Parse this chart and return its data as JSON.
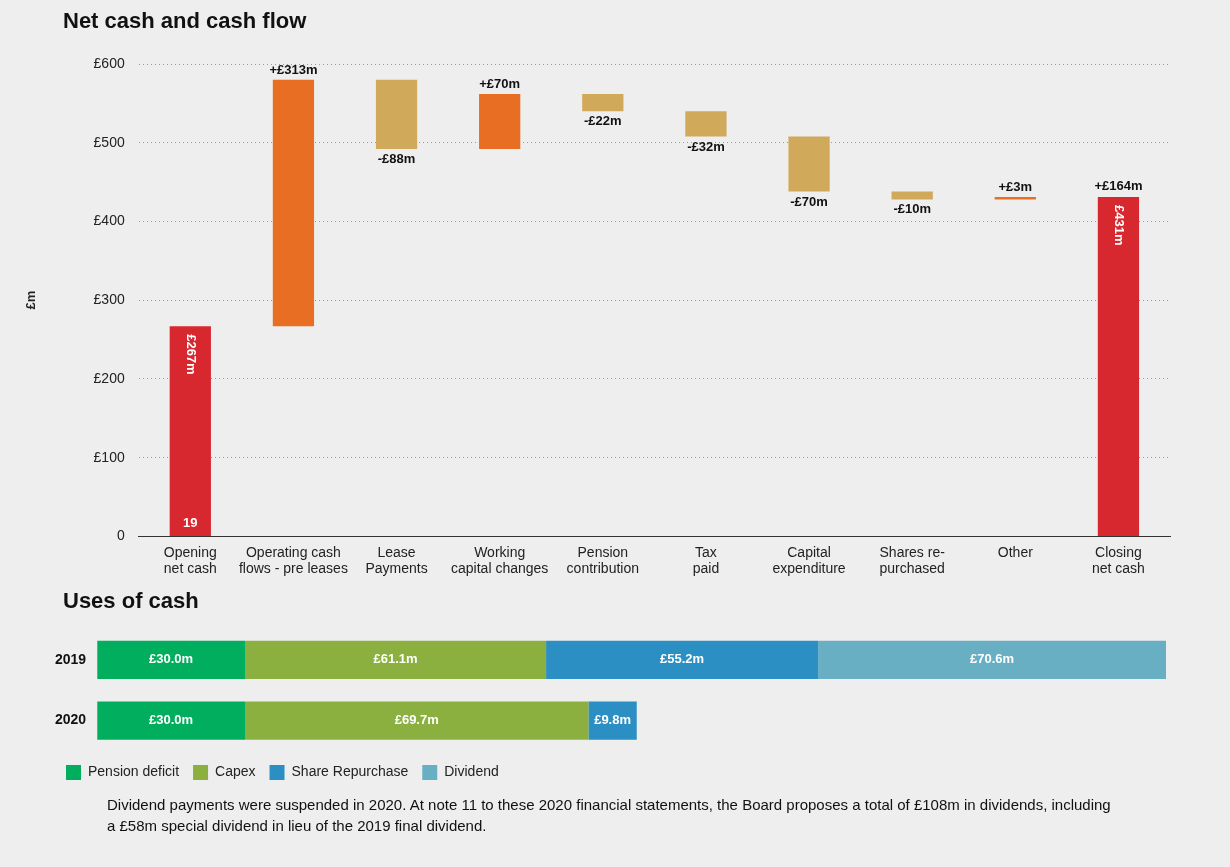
{
  "chart_data": [
    {
      "type": "bar",
      "title": "Net cash and cash flow",
      "ylabel": "£m",
      "categories": [
        "Opening net cash",
        "Operating cash flows - pre leases",
        "Lease Payments",
        "Working capital changes",
        "Pension contribution",
        "Tax paid",
        "Capital expenditure",
        "Shares re-purchased",
        "Other",
        "Closing net cash"
      ],
      "values": [
        267,
        313,
        -88,
        70,
        -22,
        -32,
        -70,
        -10,
        3,
        431
      ],
      "base": [
        0,
        267,
        580,
        492,
        562,
        540,
        508,
        438,
        428,
        0
      ],
      "colors": [
        "#d7282f",
        "#e86e23",
        "#d1a95a",
        "#e86e23",
        "#d1a95a",
        "#d1a95a",
        "#d1a95a",
        "#d1a95a",
        "#e86e23",
        "#d7282f"
      ],
      "value_labels": [
        "£267m",
        "+£313m",
        "-£88m",
        "+£70m",
        "-£22m",
        "-£32m",
        "-£70m",
        "-£10m",
        "+£3m",
        "£431m"
      ],
      "annotations": [
        {
          "text": "19",
          "x": "Opening net cash",
          "y": 0
        },
        {
          "text": "+£164m",
          "x": "Closing net cash",
          "y": 431
        }
      ],
      "ylim": [
        0,
        600
      ],
      "yticks": [
        {
          "value": 0,
          "label": "0"
        },
        {
          "value": 100,
          "label": "£100"
        },
        {
          "value": 200,
          "label": "£200"
        },
        {
          "value": 300,
          "label": "£300"
        },
        {
          "value": 400,
          "label": "£400"
        },
        {
          "value": 500,
          "label": "£500"
        },
        {
          "value": 600,
          "label": "£600"
        }
      ],
      "grid": "y",
      "legend": false
    },
    {
      "type": "bar",
      "title": "Uses of cash",
      "orientation": "horizontal",
      "stacked": true,
      "tick_labels": "y",
      "legend": "bottom left",
      "categories": [
        "2019",
        "2020"
      ],
      "series": [
        {
          "name": "Pension deficit",
          "color": "#00ae5e",
          "values": [
            30.0,
            30.0
          ],
          "value_labels": [
            "£30.0m",
            "£30.0m"
          ]
        },
        {
          "name": "Capex",
          "color": "#8bb040",
          "values": [
            61.1,
            69.7
          ],
          "value_labels": [
            "£61.1m",
            "£69.7m"
          ]
        },
        {
          "name": "Share Repurchase",
          "color": "#2b8fc4",
          "values": [
            55.2,
            9.8
          ],
          "value_labels": [
            "£55.2m",
            "£9.8m"
          ]
        },
        {
          "name": "Dividend",
          "color": "#68afc4",
          "values": [
            70.6,
            null
          ],
          "value_labels": [
            "£70.6m",
            null
          ]
        }
      ],
      "annotations": [
        "Dividend payments were suspended in 2020. At note 11 to these 2020 financial statements, the Board proposes a total of £108m in dividends, including a £58m special dividend in lieu of the 2019 final dividend."
      ]
    }
  ]
}
